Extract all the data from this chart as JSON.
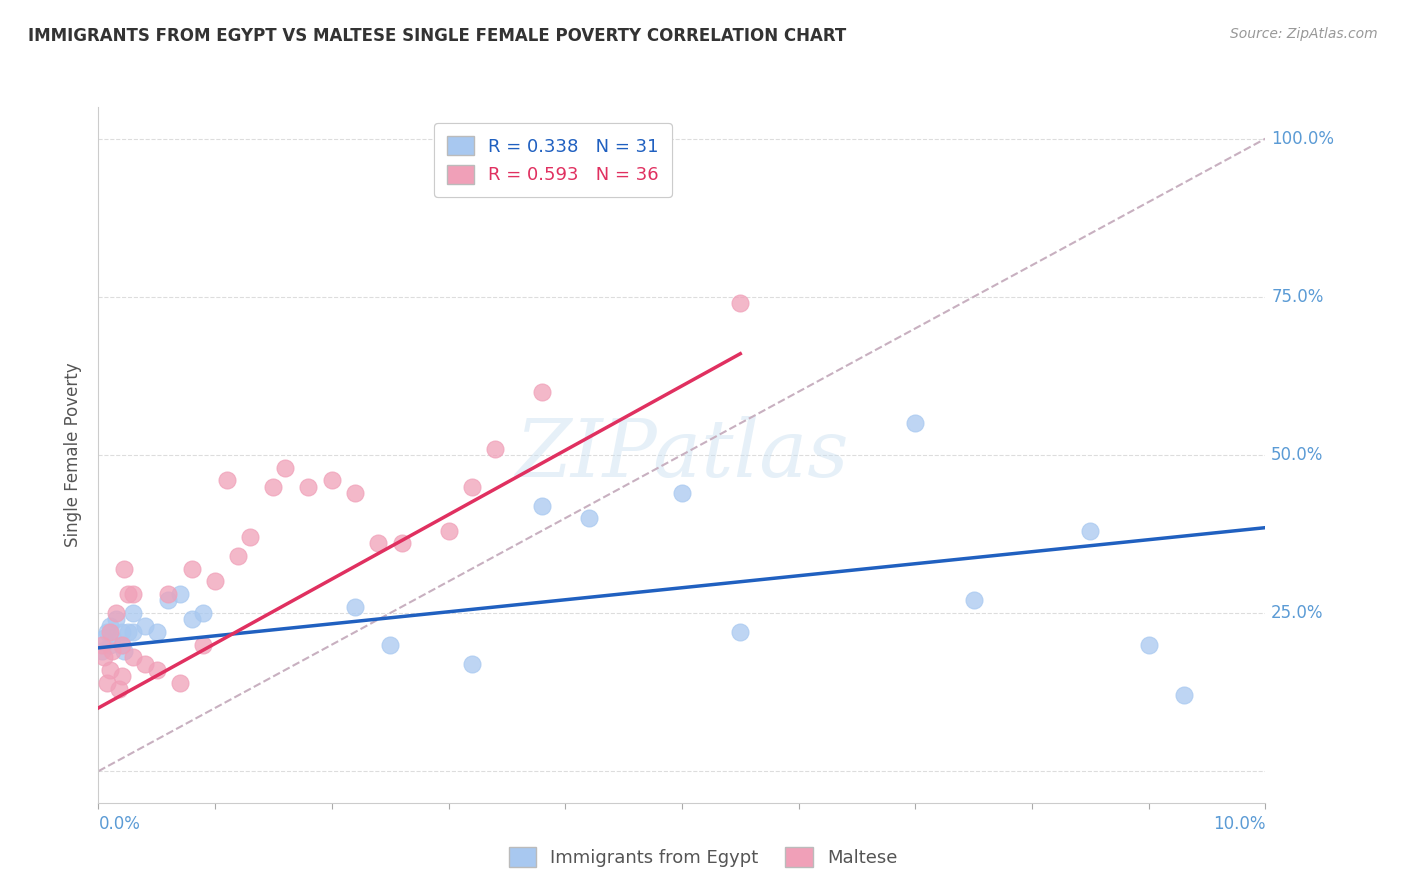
{
  "title": "IMMIGRANTS FROM EGYPT VS MALTESE SINGLE FEMALE POVERTY CORRELATION CHART",
  "source": "Source: ZipAtlas.com",
  "ylabel": "Single Female Poverty",
  "color_egypt": "#A8C8F0",
  "color_maltese": "#F0A0B8",
  "color_egypt_line": "#2060C0",
  "color_maltese_line": "#E03060",
  "color_diag_line": "#C8B0C0",
  "xmin": 0.0,
  "xmax": 0.1,
  "ymin": -0.05,
  "ymax": 1.05,
  "egypt_scatter_x": [
    0.0003,
    0.0005,
    0.0007,
    0.001,
    0.001,
    0.0012,
    0.0015,
    0.002,
    0.002,
    0.0022,
    0.0025,
    0.003,
    0.003,
    0.004,
    0.005,
    0.006,
    0.007,
    0.008,
    0.009,
    0.022,
    0.025,
    0.032,
    0.038,
    0.042,
    0.05,
    0.055,
    0.07,
    0.075,
    0.085,
    0.09,
    0.093
  ],
  "egypt_scatter_y": [
    0.19,
    0.21,
    0.22,
    0.2,
    0.23,
    0.21,
    0.24,
    0.22,
    0.2,
    0.19,
    0.22,
    0.25,
    0.22,
    0.23,
    0.22,
    0.27,
    0.28,
    0.24,
    0.25,
    0.26,
    0.2,
    0.17,
    0.42,
    0.4,
    0.44,
    0.22,
    0.55,
    0.27,
    0.38,
    0.2,
    0.12
  ],
  "maltese_scatter_x": [
    0.0003,
    0.0005,
    0.0007,
    0.001,
    0.001,
    0.0012,
    0.0015,
    0.0018,
    0.002,
    0.002,
    0.0022,
    0.0025,
    0.003,
    0.003,
    0.004,
    0.005,
    0.006,
    0.007,
    0.008,
    0.009,
    0.01,
    0.011,
    0.012,
    0.013,
    0.015,
    0.016,
    0.018,
    0.02,
    0.022,
    0.024,
    0.026,
    0.03,
    0.032,
    0.034,
    0.038,
    0.055
  ],
  "maltese_scatter_y": [
    0.2,
    0.18,
    0.14,
    0.16,
    0.22,
    0.19,
    0.25,
    0.13,
    0.2,
    0.15,
    0.32,
    0.28,
    0.28,
    0.18,
    0.17,
    0.16,
    0.28,
    0.14,
    0.32,
    0.2,
    0.3,
    0.46,
    0.34,
    0.37,
    0.45,
    0.48,
    0.45,
    0.46,
    0.44,
    0.36,
    0.36,
    0.38,
    0.45,
    0.51,
    0.6,
    0.74
  ],
  "egypt_line_x": [
    0.0,
    0.1
  ],
  "egypt_line_y": [
    0.195,
    0.385
  ],
  "maltese_line_x": [
    0.0,
    0.055
  ],
  "maltese_line_y": [
    0.1,
    0.66
  ],
  "diag_line_x": [
    0.0,
    0.1
  ],
  "diag_line_y": [
    0.0,
    1.0
  ]
}
